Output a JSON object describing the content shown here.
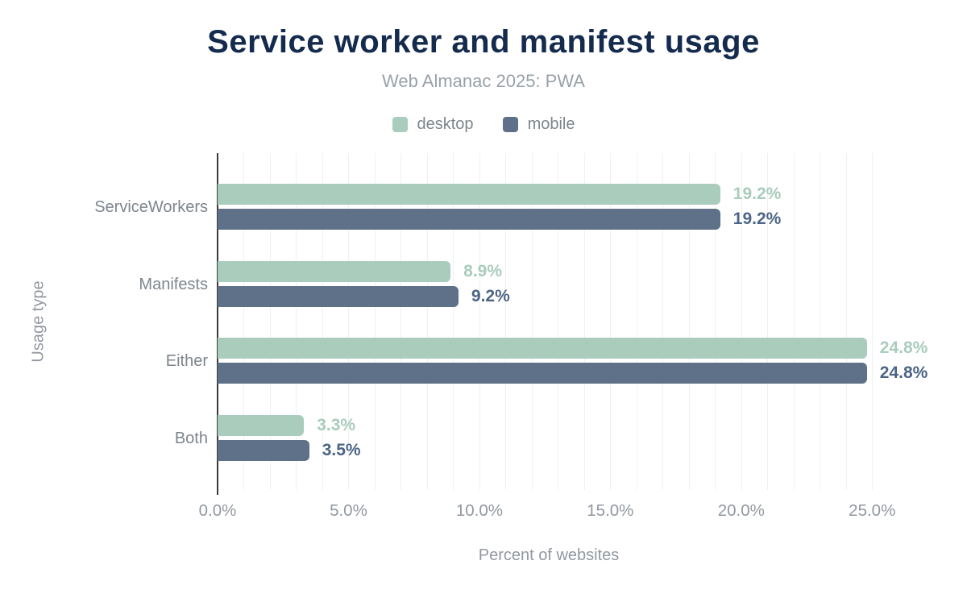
{
  "chart_data": {
    "type": "bar",
    "orientation": "horizontal",
    "title": "Service worker and manifest usage",
    "subtitle": "Web Almanac 2025: PWA",
    "xlabel": "Percent of websites",
    "ylabel": "Usage type",
    "categories": [
      "ServiceWorkers",
      "Manifests",
      "Either",
      "Both"
    ],
    "series": [
      {
        "name": "desktop",
        "color": "#a9ccbc",
        "label_color": "#a9ccbc",
        "values": [
          19.2,
          8.9,
          24.8,
          3.3
        ],
        "labels": [
          "19.2%",
          "8.9%",
          "24.8%",
          "3.3%"
        ]
      },
      {
        "name": "mobile",
        "color": "#5e7189",
        "label_color": "#4c6587",
        "values": [
          19.2,
          9.2,
          24.8,
          3.5
        ],
        "labels": [
          "19.2%",
          "9.2%",
          "24.8%",
          "3.5%"
        ]
      }
    ],
    "x_axis": {
      "min": 0,
      "max": 25.3,
      "grid_step": 1,
      "grid_max": 25,
      "tick_values": [
        0,
        5,
        10,
        15,
        20,
        25
      ],
      "tick_labels": [
        "0.0%",
        "5.0%",
        "10.0%",
        "15.0%",
        "20.0%",
        "25.0%"
      ]
    },
    "grid": true,
    "legend_position": "top"
  },
  "theme": {
    "title_color": "#152b4e",
    "category_text_color": "#7e858c",
    "tick_text_color": "#9298a0",
    "subtitle_color": "#99a1a8",
    "gridline_color": "#eff1f1",
    "axis_line_color": "#3a3c3e",
    "background": "#ffffff"
  }
}
